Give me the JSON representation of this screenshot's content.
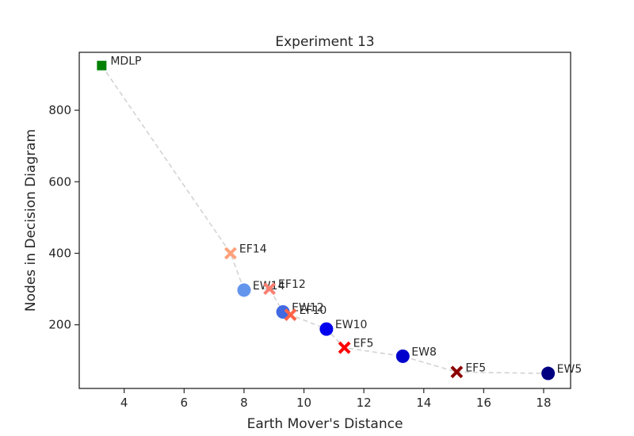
{
  "chart_data": {
    "type": "scatter",
    "title": "Experiment 13",
    "xlabel": "Earth Mover's Distance",
    "ylabel": "Nodes in Decision Diagram",
    "xlim": [
      2.5,
      18.9
    ],
    "ylim": [
      22,
      962
    ],
    "xticks": [
      4,
      6,
      8,
      10,
      12,
      14,
      16,
      18
    ],
    "yticks": [
      200,
      400,
      600,
      800
    ],
    "grid": false,
    "legend": "none",
    "frontier_line": {
      "color": "#d3d3d3",
      "style": "dashed"
    },
    "points": [
      {
        "label": "MDLP",
        "x": 3.25,
        "y": 925,
        "marker": "square",
        "color": "#008000"
      },
      {
        "label": "EF14",
        "x": 7.55,
        "y": 400,
        "marker": "x",
        "color": "#ffa07a"
      },
      {
        "label": "EW14",
        "x": 8.0,
        "y": 297,
        "marker": "circle",
        "color": "#6495ed"
      },
      {
        "label": "EF12",
        "x": 8.85,
        "y": 301,
        "marker": "x",
        "color": "#fa8072"
      },
      {
        "label": "EW12",
        "x": 9.3,
        "y": 236,
        "marker": "circle",
        "color": "#4169e1"
      },
      {
        "label": "EF10",
        "x": 9.55,
        "y": 228,
        "marker": "x",
        "color": "#ff6347"
      },
      {
        "label": "EW10",
        "x": 10.75,
        "y": 188,
        "marker": "circle",
        "color": "#0000ee"
      },
      {
        "label": "EF5",
        "x": 11.35,
        "y": 136,
        "marker": "x",
        "color": "#ff0000"
      },
      {
        "label": "EW8",
        "x": 13.3,
        "y": 112,
        "marker": "circle",
        "color": "#0000cd"
      },
      {
        "label": "EF5",
        "x": 15.1,
        "y": 68,
        "marker": "x",
        "color": "#8b0000"
      },
      {
        "label": "EW5",
        "x": 18.15,
        "y": 64,
        "marker": "circle",
        "color": "#000080"
      }
    ],
    "frontier_order": [
      "MDLP",
      "EF14",
      "EW14",
      "EF12",
      "EW12",
      "EF10",
      "EW10",
      "EF5",
      "EW8",
      "EF5",
      "EW5"
    ]
  }
}
